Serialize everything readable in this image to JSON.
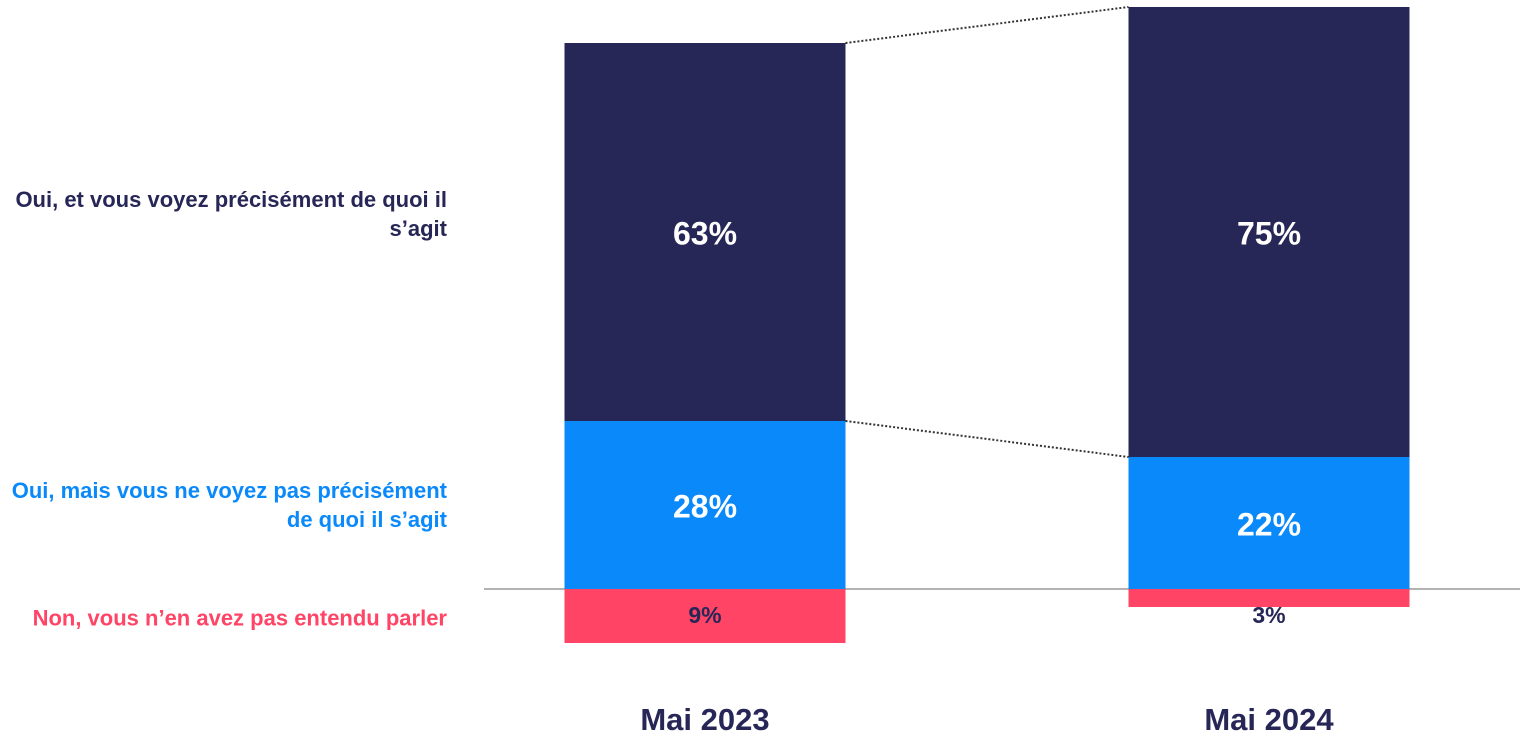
{
  "chart_data": {
    "type": "bar",
    "stacked": true,
    "categories": [
      "Mai 2023",
      "Mai 2024"
    ],
    "series": [
      {
        "name": "Oui, et vous voyez précisément de quoi il s’agit",
        "color": "#262657",
        "label_color": "#ffffff",
        "values": [
          63,
          75
        ],
        "value_labels": [
          "63%",
          "75%"
        ]
      },
      {
        "name": "Oui, mais vous ne voyez pas précisément de quoi il s’agit",
        "color": "#0a89fb",
        "label_color": "#ffffff",
        "values": [
          28,
          22
        ],
        "value_labels": [
          "28%",
          "22%"
        ]
      },
      {
        "name": "Non, vous n’en avez pas entendu parler",
        "color": "#ff4466",
        "label_color": "#262657",
        "side": "below",
        "values": [
          9,
          3
        ],
        "value_labels": [
          "9%",
          "3%"
        ]
      }
    ],
    "ylim": [
      -20,
      100
    ]
  }
}
